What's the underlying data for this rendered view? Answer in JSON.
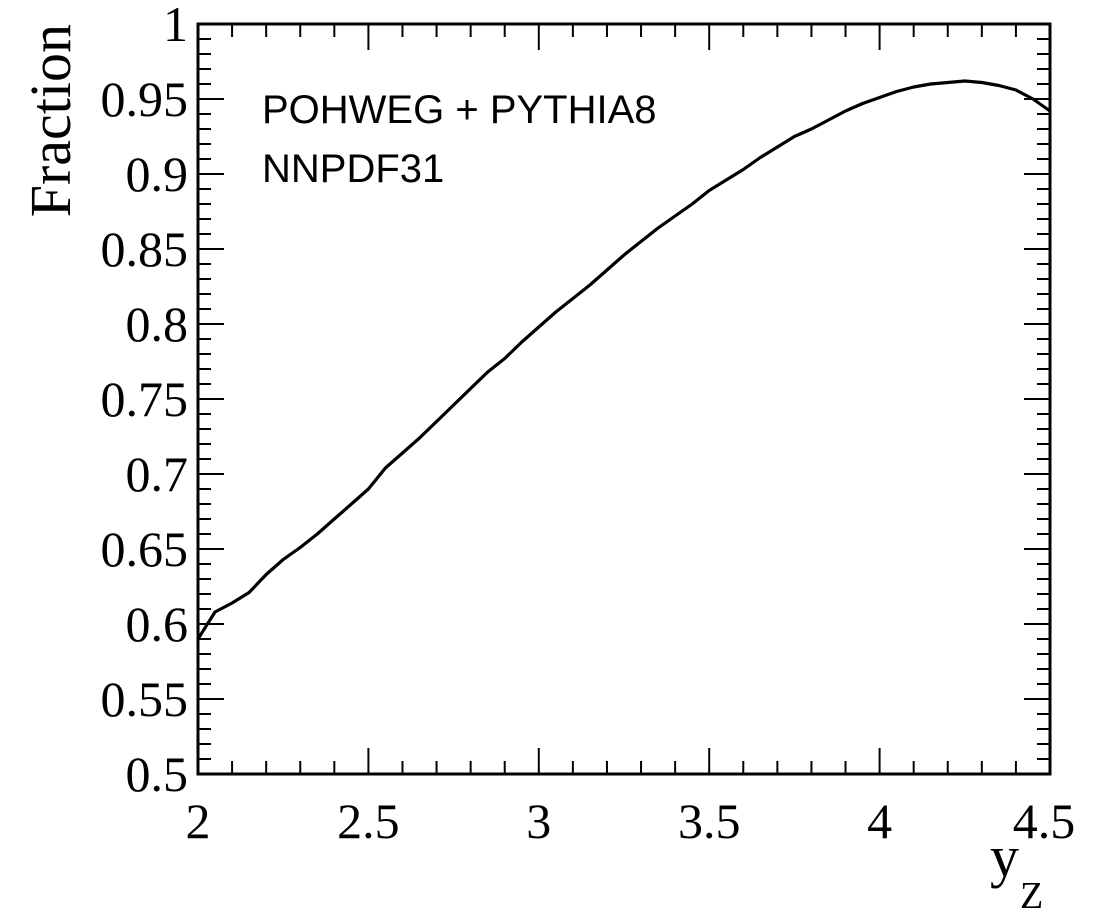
{
  "chart_data": {
    "type": "line",
    "xlabel": "y",
    "xlabel_subscript": "Z",
    "ylabel": "Fraction",
    "xlim": [
      2,
      4.5
    ],
    "ylim": [
      0.5,
      1
    ],
    "x_ticks": [
      "2",
      "2.5",
      "3",
      "3.5",
      "4",
      "4.5"
    ],
    "y_ticks": [
      "0.5",
      "0.55",
      "0.6",
      "0.65",
      "0.7",
      "0.75",
      "0.8",
      "0.85",
      "0.9",
      "0.95",
      "1"
    ],
    "annotations": [
      "POHWEG + PYTHIA8",
      "NNPDF31"
    ],
    "grid": false,
    "line_color": "#000000",
    "series": [
      {
        "x": [
          2.0,
          2.05,
          2.1,
          2.15,
          2.2,
          2.25,
          2.3,
          2.35,
          2.4,
          2.45,
          2.5,
          2.55,
          2.6,
          2.65,
          2.7,
          2.75,
          2.8,
          2.85,
          2.9,
          2.95,
          3.0,
          3.05,
          3.1,
          3.15,
          3.2,
          3.25,
          3.3,
          3.35,
          3.4,
          3.45,
          3.5,
          3.55,
          3.6,
          3.65,
          3.7,
          3.75,
          3.8,
          3.85,
          3.9,
          3.95,
          4.0,
          4.05,
          4.1,
          4.15,
          4.2,
          4.25,
          4.3,
          4.35,
          4.4,
          4.45,
          4.5
        ],
        "values": [
          0.59,
          0.608,
          0.614,
          0.621,
          0.633,
          0.643,
          0.651,
          0.66,
          0.67,
          0.68,
          0.69,
          0.704,
          0.714,
          0.724,
          0.735,
          0.746,
          0.757,
          0.768,
          0.777,
          0.788,
          0.798,
          0.808,
          0.817,
          0.826,
          0.836,
          0.846,
          0.855,
          0.864,
          0.872,
          0.88,
          0.889,
          0.896,
          0.903,
          0.911,
          0.918,
          0.925,
          0.93,
          0.936,
          0.942,
          0.947,
          0.951,
          0.955,
          0.958,
          0.96,
          0.961,
          0.962,
          0.961,
          0.959,
          0.956,
          0.95,
          0.942
        ]
      }
    ]
  }
}
